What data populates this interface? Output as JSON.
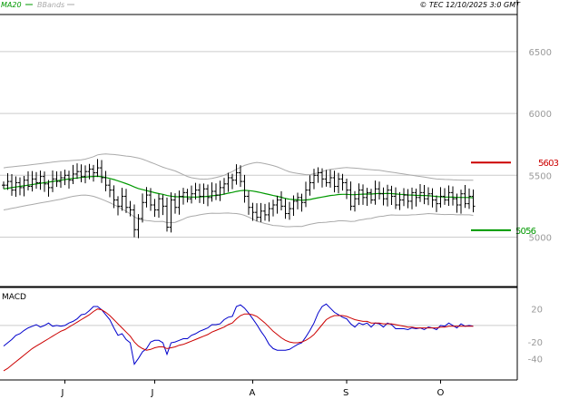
{
  "header": {
    "legend": [
      {
        "label": "MA20",
        "color": "#009900"
      },
      {
        "label": "BBands",
        "color": "#aaaaaa"
      }
    ],
    "source": "© TEC 12/10/2025 3:0 GMT"
  },
  "colors": {
    "price_bars": "#000000",
    "ma20": "#009900",
    "bbands": "#aaaaaa",
    "macd": "#0000cc",
    "signal": "#cc0000",
    "grid": "#cccccc",
    "resistance": "#cc0000",
    "support": "#009900"
  },
  "chart_data": [
    {
      "type": "bar",
      "subtype": "ohlc",
      "title": "",
      "y_tick_labels": [
        "6500",
        "6000",
        "5500",
        "5000"
      ],
      "y_ticks": [
        6500,
        6000,
        5500,
        5000
      ],
      "ylim": [
        4600,
        6800
      ],
      "x_tick_labels": [
        "J",
        "J",
        "A",
        "S",
        "O"
      ],
      "x_tick_indices": [
        15,
        37,
        61,
        84,
        107
      ],
      "overlays": [
        "MA20",
        "BBands"
      ],
      "levels": [
        {
          "label": "5603",
          "value": 5603,
          "color": "#cc0000"
        },
        {
          "label": "5056",
          "value": 5056,
          "color": "#009900"
        }
      ],
      "close": [
        5420,
        5450,
        5380,
        5440,
        5400,
        5460,
        5410,
        5470,
        5440,
        5490,
        5430,
        5400,
        5470,
        5450,
        5480,
        5500,
        5460,
        5510,
        5530,
        5490,
        5530,
        5550,
        5520,
        5560,
        5480,
        5420,
        5380,
        5300,
        5250,
        5330,
        5240,
        5220,
        5060,
        5150,
        5280,
        5340,
        5260,
        5220,
        5310,
        5250,
        5080,
        5300,
        5240,
        5330,
        5360,
        5310,
        5350,
        5380,
        5330,
        5390,
        5320,
        5370,
        5340,
        5400,
        5430,
        5480,
        5460,
        5520,
        5450,
        5330,
        5240,
        5200,
        5160,
        5210,
        5180,
        5230,
        5260,
        5300,
        5250,
        5190,
        5230,
        5290,
        5320,
        5280,
        5380,
        5440,
        5500,
        5520,
        5470,
        5440,
        5480,
        5410,
        5470,
        5440,
        5380,
        5250,
        5310,
        5380,
        5320,
        5360,
        5300,
        5390,
        5350,
        5310,
        5380,
        5330,
        5260,
        5300,
        5340,
        5290,
        5360,
        5320,
        5360,
        5310,
        5350,
        5300,
        5270,
        5330,
        5300,
        5360,
        5310,
        5260,
        5350,
        5270,
        5330,
        5250
      ],
      "ma20": [
        5390,
        5395,
        5400,
        5405,
        5410,
        5415,
        5420,
        5425,
        5430,
        5435,
        5440,
        5445,
        5450,
        5455,
        5460,
        5465,
        5470,
        5475,
        5478,
        5482,
        5485,
        5488,
        5490,
        5492,
        5488,
        5482,
        5474,
        5465,
        5455,
        5444,
        5432,
        5420,
        5405,
        5393,
        5384,
        5376,
        5368,
        5359,
        5352,
        5346,
        5336,
        5331,
        5327,
        5326,
        5325,
        5325,
        5324,
        5324,
        5325,
        5327,
        5330,
        5334,
        5337,
        5341,
        5347,
        5355,
        5361,
        5369,
        5375,
        5378,
        5376,
        5372,
        5366,
        5360,
        5352,
        5344,
        5336,
        5330,
        5322,
        5312,
        5306,
        5303,
        5301,
        5298,
        5300,
        5304,
        5311,
        5318,
        5324,
        5330,
        5336,
        5339,
        5344,
        5346,
        5346,
        5343,
        5343,
        5346,
        5347,
        5348,
        5348,
        5351,
        5353,
        5352,
        5353,
        5352,
        5349,
        5346,
        5344,
        5341,
        5340,
        5338,
        5337,
        5336,
        5335,
        5332,
        5328,
        5326,
        5324,
        5324,
        5323,
        5321,
        5321,
        5320,
        5320,
        5318
      ],
      "bb_upper": [
        5560,
        5565,
        5568,
        5572,
        5575,
        5578,
        5582,
        5586,
        5590,
        5594,
        5598,
        5602,
        5606,
        5610,
        5614,
        5616,
        5618,
        5620,
        5622,
        5625,
        5630,
        5640,
        5650,
        5665,
        5670,
        5672,
        5670,
        5668,
        5664,
        5660,
        5655,
        5652,
        5646,
        5640,
        5630,
        5618,
        5605,
        5592,
        5578,
        5565,
        5555,
        5545,
        5535,
        5520,
        5505,
        5490,
        5480,
        5475,
        5470,
        5468,
        5470,
        5475,
        5482,
        5490,
        5500,
        5515,
        5530,
        5548,
        5565,
        5580,
        5590,
        5598,
        5604,
        5600,
        5594,
        5586,
        5578,
        5568,
        5555,
        5540,
        5528,
        5520,
        5515,
        5510,
        5505,
        5505,
        5512,
        5520,
        5530,
        5540,
        5548,
        5552,
        5556,
        5560,
        5562,
        5560,
        5558,
        5555,
        5552,
        5548,
        5545,
        5542,
        5540,
        5535,
        5530,
        5525,
        5520,
        5515,
        5510,
        5505,
        5500,
        5495,
        5490,
        5485,
        5480,
        5475,
        5470,
        5468,
        5466,
        5465,
        5463,
        5462,
        5461,
        5460,
        5460,
        5460
      ],
      "bb_lower": [
        5220,
        5225,
        5232,
        5238,
        5245,
        5252,
        5258,
        5264,
        5270,
        5276,
        5282,
        5288,
        5294,
        5300,
        5306,
        5314,
        5322,
        5330,
        5334,
        5339,
        5340,
        5336,
        5330,
        5319,
        5306,
        5292,
        5278,
        5262,
        5246,
        5228,
        5209,
        5188,
        5164,
        5146,
        5138,
        5134,
        5131,
        5126,
        5126,
        5127,
        5117,
        5117,
        5119,
        5132,
        5145,
        5160,
        5168,
        5173,
        5180,
        5186,
        5190,
        5193,
        5192,
        5192,
        5194,
        5195,
        5192,
        5190,
        5185,
        5176,
        5162,
        5146,
        5128,
        5120,
        5110,
        5102,
        5094,
        5092,
        5089,
        5084,
        5084,
        5086,
        5087,
        5086,
        5095,
        5103,
        5110,
        5116,
        5118,
        5120,
        5124,
        5126,
        5132,
        5132,
        5130,
        5126,
        5128,
        5137,
        5142,
        5148,
        5151,
        5160,
        5166,
        5169,
        5176,
        5179,
        5178,
        5177,
        5178,
        5177,
        5180,
        5181,
        5184,
        5187,
        5190,
        5189,
        5186,
        5184,
        5182,
        5183,
        5183,
        5180,
        5181,
        5180,
        5180,
        5176
      ]
    },
    {
      "type": "line",
      "title": "MACD",
      "y_tick_labels": [
        "20",
        "-20",
        "-40"
      ],
      "y_ticks": [
        20,
        -20,
        -40
      ],
      "zero_line": 0,
      "ylim": [
        -65,
        45
      ],
      "x_tick_labels": [
        "J",
        "J",
        "A",
        "S",
        "O"
      ],
      "x_tick_indices": [
        15,
        37,
        61,
        84,
        107
      ],
      "series": [
        {
          "name": "",
          "color": "#0000cc",
          "values": [
            -25,
            -21,
            -17,
            -12,
            -10,
            -6,
            -3,
            -1,
            1,
            -2,
            0,
            3,
            -1,
            0,
            -1,
            0,
            3,
            5,
            8,
            13,
            14,
            18,
            23,
            23,
            19,
            13,
            7,
            -3,
            -12,
            -10,
            -17,
            -21,
            -47,
            -40,
            -32,
            -28,
            -20,
            -18,
            -18,
            -21,
            -35,
            -21,
            -20,
            -18,
            -16,
            -16,
            -12,
            -10,
            -7,
            -5,
            -3,
            1,
            1,
            2,
            7,
            10,
            11,
            23,
            25,
            21,
            15,
            8,
            1,
            -7,
            -14,
            -23,
            -28,
            -30,
            -30,
            -30,
            -29,
            -26,
            -23,
            -21,
            -14,
            -6,
            3,
            15,
            23,
            26,
            21,
            16,
            13,
            10,
            8,
            2,
            -2,
            3,
            1,
            3,
            -2,
            3,
            2,
            -2,
            3,
            1,
            -4,
            -4,
            -4,
            -5,
            -3,
            -4,
            -3,
            -5,
            -2,
            -3,
            -5,
            0,
            -1,
            3,
            0,
            -3,
            2,
            -1,
            0,
            -1
          ]
        },
        {
          "name": "",
          "color": "#cc0000",
          "values": [
            -55,
            -52,
            -48,
            -44,
            -40,
            -36,
            -32,
            -28,
            -25,
            -22,
            -19,
            -16,
            -13,
            -10,
            -7,
            -5,
            -2,
            1,
            4,
            7,
            10,
            13,
            17,
            20,
            19,
            16,
            12,
            7,
            2,
            -3,
            -8,
            -13,
            -20,
            -25,
            -28,
            -30,
            -29,
            -27,
            -26,
            -26,
            -28,
            -27,
            -26,
            -24,
            -23,
            -21,
            -19,
            -17,
            -15,
            -13,
            -11,
            -8,
            -6,
            -4,
            -2,
            1,
            3,
            8,
            12,
            14,
            14,
            13,
            11,
            7,
            3,
            -2,
            -7,
            -11,
            -15,
            -18,
            -20,
            -21,
            -21,
            -20,
            -18,
            -15,
            -11,
            -5,
            1,
            7,
            10,
            12,
            12,
            12,
            11,
            9,
            7,
            6,
            5,
            5,
            3,
            3,
            3,
            2,
            2,
            2,
            1,
            0,
            -1,
            -2,
            -2,
            -3,
            -3,
            -3,
            -3,
            -3,
            -3,
            -2,
            -2,
            -1,
            -1,
            -1,
            -1,
            -1,
            -1,
            -1
          ]
        }
      ]
    }
  ]
}
